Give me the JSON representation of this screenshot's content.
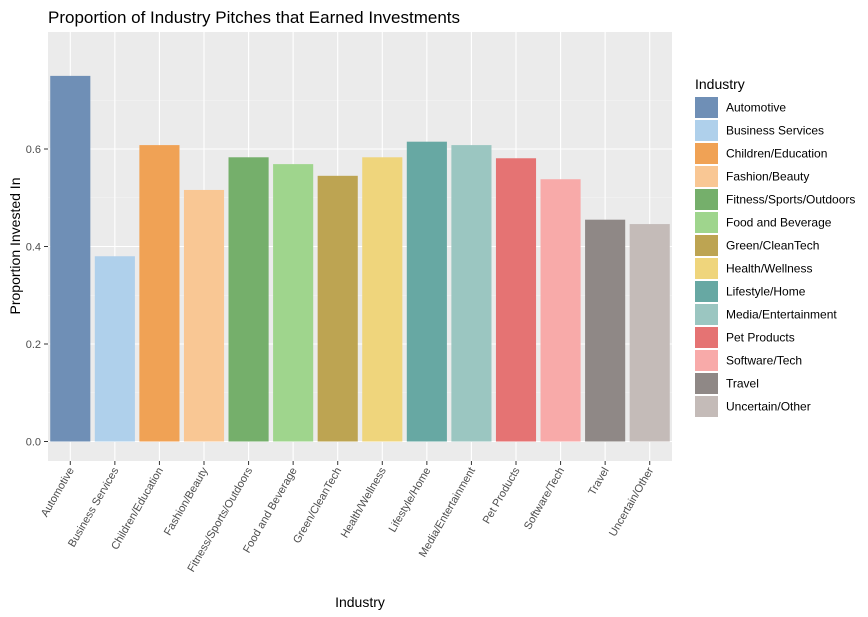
{
  "chart_data": {
    "type": "bar",
    "title": "Proportion of Industry Pitches that Earned Investments",
    "xlabel": "Industry",
    "ylabel": "Proportion Invested In",
    "ylim": [
      -0.04,
      0.84
    ],
    "yticks": [
      0.0,
      0.2,
      0.4,
      0.6
    ],
    "ytick_labels": [
      "0.0",
      "0.2",
      "0.4",
      "0.6"
    ],
    "grid": true,
    "legend": {
      "title": "Industry",
      "position": "right"
    },
    "categories": [
      "Automotive",
      "Business Services",
      "Children/Education",
      "Fashion/Beauty",
      "Fitness/Sports/Outdoors",
      "Food and Beverage",
      "Green/CleanTech",
      "Health/Wellness",
      "Lifestyle/Home",
      "Media/Entertainment",
      "Pet Products",
      "Software/Tech",
      "Travel",
      "Uncertain/Other"
    ],
    "values": [
      0.75,
      0.38,
      0.608,
      0.516,
      0.583,
      0.569,
      0.545,
      0.583,
      0.615,
      0.608,
      0.581,
      0.538,
      0.455,
      0.446
    ],
    "colors": [
      "#6f8fb6",
      "#afd0eb",
      "#f0a255",
      "#f9c794",
      "#75af6b",
      "#9fd58d",
      "#bda452",
      "#efd57c",
      "#67a8a3",
      "#9bc6c1",
      "#e57373",
      "#f8aaa9",
      "#8f8886",
      "#c4bbb8"
    ]
  }
}
